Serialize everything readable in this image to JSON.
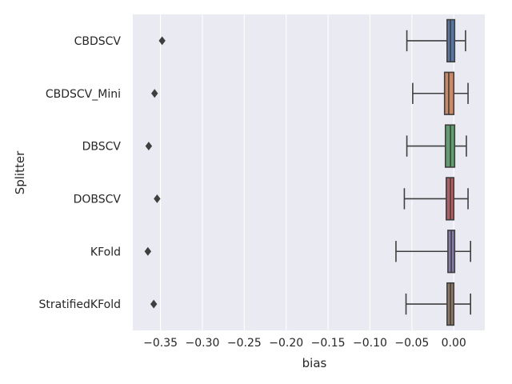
{
  "chart_data": {
    "type": "boxplot",
    "orientation": "horizontal",
    "xlabel": "bias",
    "ylabel": "Splitter",
    "xlim": [
      -0.383,
      0.037
    ],
    "xticks": [
      -0.35,
      -0.3,
      -0.25,
      -0.2,
      -0.15,
      -0.1,
      -0.05,
      0.0
    ],
    "xtick_labels": [
      "−0.35",
      "−0.30",
      "−0.25",
      "−0.20",
      "−0.15",
      "−0.10",
      "−0.05",
      "0.00"
    ],
    "grid": true,
    "background": "#eaeaf2",
    "categories": [
      "CBDSCV",
      "CBDSCV_Mini",
      "DBSCV",
      "DOBSCV",
      "KFold",
      "StratifiedKFold"
    ],
    "colors": [
      "#5875a4",
      "#cc8963",
      "#5f9e6e",
      "#b55d60",
      "#857aab",
      "#8d7866"
    ],
    "boxes": [
      {
        "category": "CBDSCV",
        "whisker_low": -0.056,
        "q1": -0.008,
        "median": -0.004,
        "q3": 0.001,
        "whisker_high": 0.014,
        "outliers": [
          -0.348
        ]
      },
      {
        "category": "CBDSCV_Mini",
        "whisker_low": -0.049,
        "q1": -0.011,
        "median": -0.006,
        "q3": 0.0,
        "whisker_high": 0.017,
        "outliers": [
          -0.357
        ]
      },
      {
        "category": "DBSCV",
        "whisker_low": -0.056,
        "q1": -0.01,
        "median": -0.004,
        "q3": 0.001,
        "whisker_high": 0.015,
        "outliers": [
          -0.364
        ]
      },
      {
        "category": "DOBSCV",
        "whisker_low": -0.059,
        "q1": -0.009,
        "median": -0.004,
        "q3": 0.0,
        "whisker_high": 0.017,
        "outliers": [
          -0.354
        ]
      },
      {
        "category": "KFold",
        "whisker_low": -0.069,
        "q1": -0.007,
        "median": -0.003,
        "q3": 0.001,
        "whisker_high": 0.02,
        "outliers": [
          -0.365
        ]
      },
      {
        "category": "StratifiedKFold",
        "whisker_low": -0.057,
        "q1": -0.008,
        "median": -0.004,
        "q3": 0.0,
        "whisker_high": 0.02,
        "outliers": [
          -0.358
        ]
      }
    ]
  }
}
